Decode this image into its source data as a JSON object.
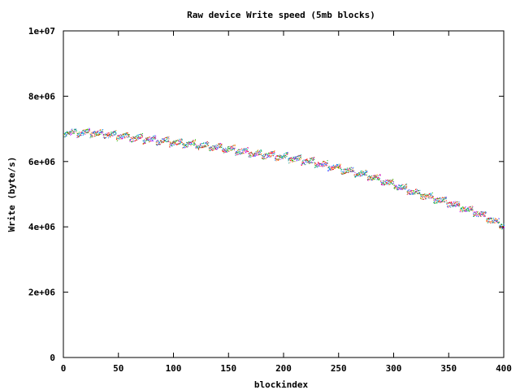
{
  "chart_data": {
    "type": "scatter",
    "title": "Raw device Write speed (5mb blocks)",
    "xlabel": "blockindex",
    "ylabel": "Write (byte/s)",
    "xlim": [
      0,
      400
    ],
    "ylim": [
      0,
      10000000
    ],
    "x_ticks": [
      "0",
      "50",
      "100",
      "150",
      "200",
      "250",
      "300",
      "350",
      "400"
    ],
    "y_ticks": [
      "0",
      "2e+06",
      "4e+06",
      "6e+06",
      "8e+06",
      "1e+07"
    ],
    "grid": false,
    "legend": "none",
    "series_colors": [
      "#ff0000",
      "#00c000",
      "#0080ff",
      "#c000ff",
      "#ff8000",
      "#00a0a0"
    ],
    "approx_trend": {
      "x": [
        0,
        25,
        50,
        75,
        100,
        125,
        150,
        175,
        200,
        225,
        250,
        275,
        300,
        325,
        350,
        375,
        400
      ],
      "y": [
        6900000,
        6900000,
        6800000,
        6700000,
        6600000,
        6500000,
        6400000,
        6250000,
        6150000,
        6000000,
        5800000,
        5600000,
        5300000,
        5000000,
        4750000,
        4450000,
        4050000
      ]
    }
  }
}
